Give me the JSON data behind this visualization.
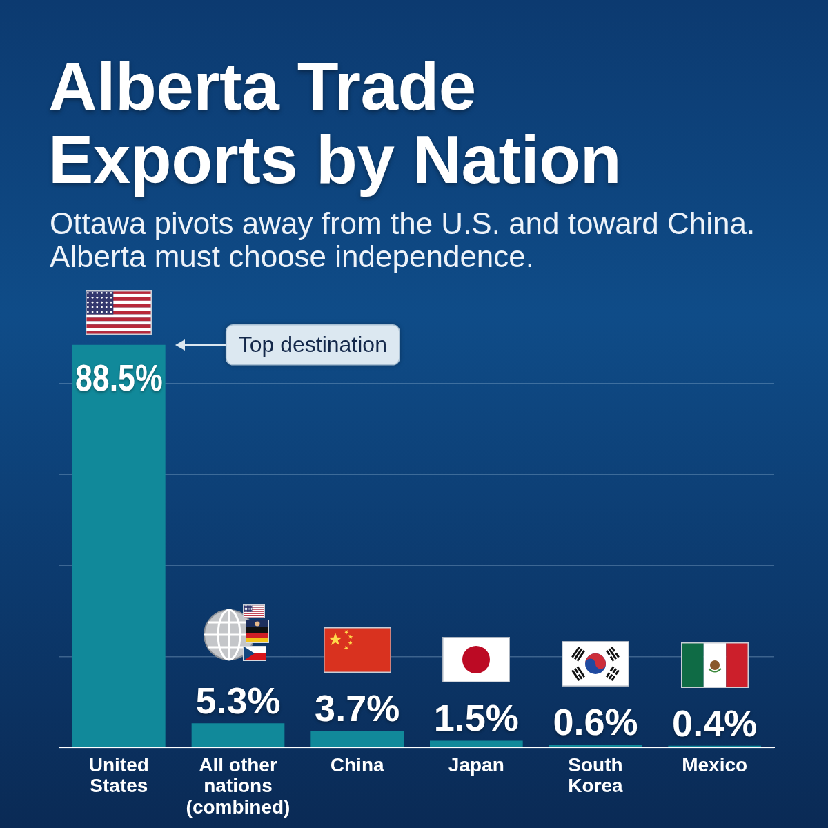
{
  "chart_data": {
    "type": "bar",
    "title": "Alberta Trade Exports by Nation",
    "subtitle": "Ottawa pivots away from the U.S. and toward China. Alberta must choose independence.",
    "categories": [
      "United States",
      "All other nations (combined)",
      "China",
      "Japan",
      "South Korea",
      "Mexico"
    ],
    "values": [
      88.5,
      5.3,
      3.7,
      1.5,
      0.6,
      0.4
    ],
    "value_labels": [
      "88.5%",
      "5.3%",
      "3.7%",
      "1.5%",
      "0.6%",
      "0.4%"
    ],
    "color": "#11899a",
    "ylim": [
      0,
      100
    ],
    "yticks": [
      {
        "value": 0,
        "label": null
      },
      {
        "value": 20,
        "label": null
      },
      {
        "value": 40,
        "label": null
      },
      {
        "value": 60,
        "label": null
      },
      {
        "value": 80,
        "label": null
      }
    ],
    "grid": "y",
    "tick_labels": "x",
    "annotations": [
      "Top destination"
    ]
  }
}
